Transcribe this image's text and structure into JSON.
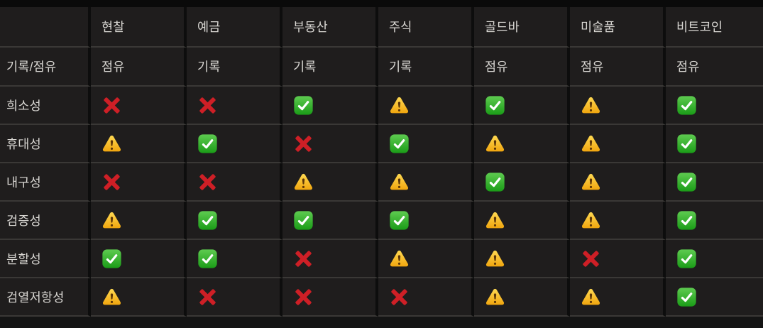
{
  "colors": {
    "page_bg": "#0a0a0a",
    "cell_bg": "#1f1d1d",
    "row_line": "#3a3836",
    "col_line": "#0d0d0d",
    "text": "#d9d7d3",
    "bottom_strip": "#141414",
    "cross_red": "#ce1f26",
    "check_green_top": "#5ecb50",
    "check_green_bottom": "#1a9c17",
    "check_mark_white": "#ffffff",
    "warning_yellow_top": "#ffd952",
    "warning_yellow_bottom": "#f0a50e",
    "warning_glyph": "#5c3608"
  },
  "table": {
    "corner_label": "",
    "columns": [
      {
        "key": "cash",
        "label": "현찰"
      },
      {
        "key": "deposit",
        "label": "예금"
      },
      {
        "key": "real-estate",
        "label": "부동산"
      },
      {
        "key": "stock",
        "label": "주식"
      },
      {
        "key": "gold-bar",
        "label": "골드바"
      },
      {
        "key": "artwork",
        "label": "미술품"
      },
      {
        "key": "bitcoin",
        "label": "비트코인"
      }
    ],
    "record_row": {
      "key": "record-or-possession",
      "label": "기록/점유",
      "values": [
        "점유",
        "기록",
        "기록",
        "기록",
        "점유",
        "점유",
        "점유"
      ]
    },
    "property_rows": [
      {
        "key": "scarcity",
        "label": "희소성",
        "cells": [
          "cross",
          "cross",
          "check",
          "warning",
          "check",
          "warning",
          "check"
        ]
      },
      {
        "key": "portability",
        "label": "휴대성",
        "cells": [
          "warning",
          "check",
          "cross",
          "check",
          "warning",
          "warning",
          "check"
        ]
      },
      {
        "key": "durability",
        "label": "내구성",
        "cells": [
          "cross",
          "cross",
          "warning",
          "warning",
          "check",
          "warning",
          "check"
        ]
      },
      {
        "key": "verifiability",
        "label": "검증성",
        "cells": [
          "warning",
          "check",
          "check",
          "check",
          "warning",
          "warning",
          "check"
        ]
      },
      {
        "key": "divisibility",
        "label": "분할성",
        "cells": [
          "check",
          "check",
          "cross",
          "warning",
          "warning",
          "cross",
          "check"
        ]
      },
      {
        "key": "censorship-resistance",
        "label": "검열저항성",
        "cells": [
          "warning",
          "cross",
          "cross",
          "cross",
          "warning",
          "warning",
          "check"
        ]
      }
    ],
    "icon_names": {
      "check": "check-mark-button-icon",
      "cross": "cross-mark-icon",
      "warning": "warning-sign-icon"
    },
    "icon_meanings": {
      "check": "good",
      "cross": "bad",
      "warning": "partial"
    }
  },
  "chart_data": {
    "type": "table",
    "title": "",
    "columns": [
      "",
      "현찰",
      "예금",
      "부동산",
      "주식",
      "골드바",
      "미술품",
      "비트코인"
    ],
    "rows": [
      [
        "기록/점유",
        "점유",
        "기록",
        "기록",
        "기록",
        "점유",
        "점유",
        "점유"
      ],
      [
        "희소성",
        "cross",
        "cross",
        "check",
        "warning",
        "check",
        "warning",
        "check"
      ],
      [
        "휴대성",
        "warning",
        "check",
        "cross",
        "check",
        "warning",
        "warning",
        "check"
      ],
      [
        "내구성",
        "cross",
        "cross",
        "warning",
        "warning",
        "check",
        "warning",
        "check"
      ],
      [
        "검증성",
        "warning",
        "check",
        "check",
        "check",
        "warning",
        "warning",
        "check"
      ],
      [
        "분할성",
        "check",
        "check",
        "cross",
        "warning",
        "warning",
        "cross",
        "check"
      ],
      [
        "검열저항성",
        "warning",
        "cross",
        "cross",
        "cross",
        "warning",
        "warning",
        "check"
      ]
    ],
    "legend": {
      "check": "✅",
      "cross": "❌",
      "warning": "⚠️"
    }
  }
}
